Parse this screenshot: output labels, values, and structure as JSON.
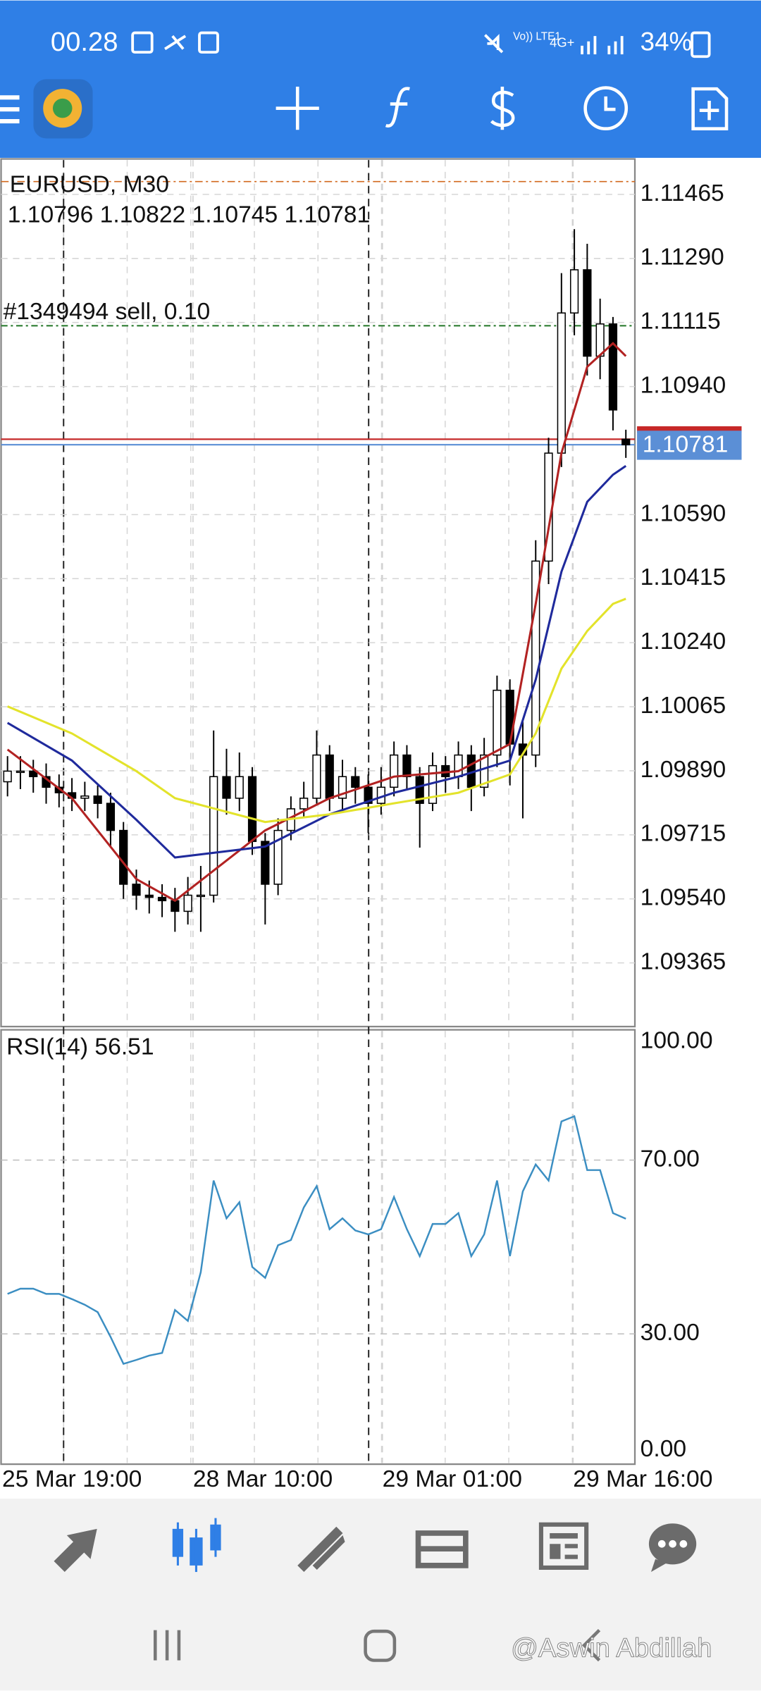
{
  "status_bar": {
    "time": "00.28",
    "battery": "34%"
  },
  "chart_data": [
    {
      "type": "candlestick",
      "title": "EURUSD, M30",
      "subtitle": "1.10796 1.10822 1.10745 1.10781",
      "annotation": "#1349494 sell, 0.10",
      "open": [
        1.0986,
        1.09889,
        1.09889,
        1.09874,
        1.09845,
        1.0983,
        1.09815,
        1.09821,
        1.09801,
        1.09727,
        1.0958,
        1.0955,
        1.09544,
        1.09535,
        1.09506,
        1.0955,
        1.0955,
        1.09874,
        1.09815,
        1.09874,
        1.09697,
        1.0958,
        1.09727,
        1.09786,
        1.09815,
        1.09933,
        1.09815,
        1.09874,
        1.09845,
        1.09801,
        1.09845,
        1.09933,
        1.09874,
        1.09801,
        1.09904,
        1.09874,
        1.09933,
        1.09845,
        1.09933,
        1.1011,
        1.09963,
        1.09933,
        1.10463,
        1.10758,
        1.11141,
        1.11259,
        1.11023,
        1.11111,
        1.10796
      ],
      "high": [
        1.0993,
        1.0993,
        1.0992,
        1.0991,
        1.0988,
        1.0987,
        1.0986,
        1.0985,
        1.0983,
        1.0975,
        1.0962,
        1.0959,
        1.0958,
        1.0957,
        1.096,
        1.0963,
        1.1,
        1.0995,
        1.0994,
        1.099,
        1.0972,
        1.0976,
        1.0982,
        1.0986,
        1.1,
        1.0996,
        1.0992,
        1.099,
        1.0988,
        1.099,
        1.0997,
        1.0996,
        1.099,
        1.0994,
        1.0993,
        1.0997,
        1.0996,
        1.0998,
        1.1015,
        1.1014,
        1.1003,
        1.1052,
        1.108,
        1.1125,
        1.1137,
        1.1133,
        1.1118,
        1.1113,
        1.10822
      ],
      "low": [
        1.0982,
        1.0984,
        1.0983,
        1.098,
        1.0979,
        1.0978,
        1.0978,
        1.0976,
        1.0968,
        1.0954,
        1.0951,
        1.095,
        1.0949,
        1.0945,
        1.0947,
        1.0945,
        1.0953,
        1.0977,
        1.0978,
        1.0966,
        1.0947,
        1.0955,
        1.097,
        1.0976,
        1.098,
        1.0978,
        1.0978,
        1.098,
        1.0972,
        1.0977,
        1.0982,
        1.0984,
        1.0968,
        1.0978,
        1.0983,
        1.0984,
        1.0978,
        1.0982,
        1.099,
        1.0985,
        1.0976,
        1.099,
        1.104,
        1.1072,
        1.1108,
        1.1097,
        1.1096,
        1.1082,
        1.10745
      ],
      "close": [
        1.09889,
        1.09889,
        1.09874,
        1.09845,
        1.0983,
        1.09815,
        1.09821,
        1.09801,
        1.09727,
        1.0958,
        1.0955,
        1.09544,
        1.09535,
        1.09506,
        1.0955,
        1.0955,
        1.09874,
        1.09815,
        1.09874,
        1.09697,
        1.0958,
        1.09727,
        1.09786,
        1.09815,
        1.09933,
        1.09815,
        1.09874,
        1.09845,
        1.09801,
        1.09845,
        1.09933,
        1.09874,
        1.09801,
        1.09904,
        1.09874,
        1.09933,
        1.09845,
        1.09933,
        1.1011,
        1.09963,
        1.09933,
        1.10463,
        1.10758,
        1.11141,
        1.11259,
        1.11023,
        1.11111,
        1.10876,
        1.10781
      ],
      "series": [
        {
          "color": "#b22222",
          "x": [
            0,
            5,
            10,
            13,
            20,
            25,
            30,
            35,
            39,
            41,
            43,
            45,
            47,
            48
          ],
          "values": [
            1.09948,
            1.09815,
            1.09594,
            1.09535,
            1.09727,
            1.09815,
            1.09874,
            1.09889,
            1.09963,
            1.10346,
            1.10758,
            1.10994,
            1.11058,
            1.11023
          ]
        },
        {
          "color": "#1f2a9c",
          "x": [
            0,
            5,
            10,
            13,
            20,
            25,
            30,
            35,
            39,
            41,
            43,
            45,
            47,
            48
          ],
          "values": [
            1.10021,
            1.09918,
            1.09756,
            1.09653,
            1.09683,
            1.09771,
            1.0983,
            1.09874,
            1.09918,
            1.10139,
            1.10434,
            1.10625,
            1.10699,
            1.10723
          ]
        },
        {
          "color": "#e3e32b",
          "x": [
            0,
            5,
            10,
            13,
            20,
            25,
            30,
            35,
            39,
            41,
            43,
            45,
            47,
            48
          ],
          "values": [
            1.10066,
            1.09992,
            1.09889,
            1.09815,
            1.0975,
            1.09771,
            1.09801,
            1.0983,
            1.0988,
            1.09992,
            1.10169,
            1.10272,
            1.10346,
            1.1036
          ]
        }
      ],
      "price_lines": [
        {
          "color": "#2e7d32",
          "value": 1.11106
        },
        {
          "color": "#c62828",
          "value": 1.10796
        },
        {
          "color": "#5b8fd6",
          "value": 1.10781
        }
      ],
      "current_price": 1.10781,
      "xlim": [
        -0.5,
        48.7
      ],
      "ylim": [
        1.09191,
        1.11559
      ],
      "xticks": [
        {
          "value": -0.5,
          "label": "25 Mar 19:00"
        },
        {
          "value": 14.4,
          "label": "28 Mar 10:00"
        },
        {
          "value": 29.1,
          "label": "29 Mar 01:00"
        },
        {
          "value": 43.9,
          "label": "29 Mar 16:00"
        }
      ],
      "yticks": [
        1.11465,
        {
          "value": 1.1129,
          "label": "1.11290"
        },
        1.11115,
        {
          "value": 1.1094,
          "label": "1.10940"
        },
        {
          "value": 1.1059,
          "label": "1.10590"
        },
        1.10415,
        {
          "value": 1.1024,
          "label": "1.10240"
        },
        1.10065,
        {
          "value": 1.0989,
          "label": "1.09890"
        },
        1.09715,
        {
          "value": 1.0954,
          "label": "1.09540"
        },
        1.09365
      ],
      "grid": true
    },
    {
      "type": "line",
      "title": "RSI(14) 56.51",
      "color": "#3b8ec2",
      "values": [
        39.2,
        40.4,
        40.4,
        39.2,
        39.2,
        38,
        36.7,
        35,
        29.3,
        23.1,
        24,
        25,
        25.6,
        35.5,
        33,
        44.2,
        65.3,
        56.6,
        60.3,
        45.4,
        42.9,
        50.4,
        51.6,
        59.1,
        64,
        54.1,
        56.6,
        53.8,
        52.9,
        54.1,
        61.5,
        54.1,
        47.9,
        55.3,
        55.3,
        57.8,
        47.9,
        52.9,
        65.3,
        47.9,
        62.8,
        69,
        65.3,
        78.9,
        80.1,
        67.7,
        67.7,
        57.8,
        56.51
      ],
      "ylim": [
        0,
        100
      ],
      "yticks": [
        {
          "value": 0,
          "label": "0.00"
        },
        {
          "value": 30,
          "label": "30.00"
        },
        {
          "value": 70,
          "label": "70.00"
        },
        {
          "value": 100,
          "label": "100.00"
        }
      ],
      "grid": true
    }
  ],
  "watermark": "@Aswin Abdillah"
}
